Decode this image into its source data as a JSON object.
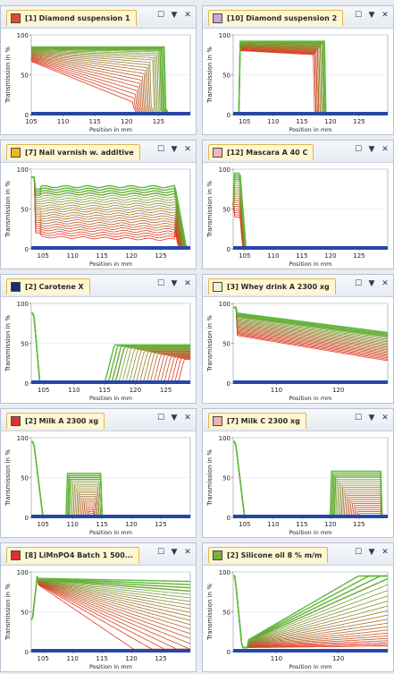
{
  "panels": [
    {
      "id": "p1",
      "title": "[1] Diamond suspension 1",
      "swatch": "#e04a3a",
      "xticks": [
        "105",
        "110",
        "115",
        "120",
        "125"
      ],
      "x0": 105,
      "x1": 130,
      "xticks_num": [
        105,
        110,
        115,
        120,
        125
      ],
      "y_ticks": [
        "0",
        "50",
        "100"
      ],
      "kind": "decay_plateau",
      "xlabel": "Position in mm",
      "ylabel": "Transmission in %"
    },
    {
      "id": "p2",
      "title": "[10] Diamond suspension 2",
      "swatch": "#c8a8d8",
      "xticks": [
        "105",
        "110",
        "115",
        "120",
        "125"
      ],
      "x0": 103,
      "x1": 130,
      "xticks_num": [
        105,
        110,
        115,
        120,
        125
      ],
      "y_ticks": [
        "0",
        "50",
        "100"
      ],
      "kind": "box",
      "xlabel": "Position in mm",
      "ylabel": "Transmission in %"
    },
    {
      "id": "p3",
      "title": "[7] Nail varnish w. additive",
      "swatch": "#f0b820",
      "xticks": [
        "105",
        "110",
        "115",
        "120",
        "125"
      ],
      "x0": 103,
      "x1": 130,
      "xticks_num": [
        105,
        110,
        115,
        120,
        125
      ],
      "y_ticks": [
        "0",
        "50",
        "100"
      ],
      "kind": "flat_band",
      "xlabel": "Position in mm",
      "ylabel": "Transmission in %"
    },
    {
      "id": "p4",
      "title": "[12] Mascara A 40 C",
      "swatch": "#f2b8b8",
      "xticks": [
        "105",
        "110",
        "115",
        "120",
        "125"
      ],
      "x0": 103,
      "x1": 130,
      "xticks_num": [
        105,
        110,
        115,
        120,
        125
      ],
      "y_ticks": [
        "0",
        "50",
        "100"
      ],
      "kind": "spike",
      "xlabel": "Position in mm",
      "ylabel": "Transmission in %"
    },
    {
      "id": "p5",
      "title": "[2] Carotene X",
      "swatch": "#1c2a7a",
      "xticks": [
        "105",
        "110",
        "115",
        "120",
        "125"
      ],
      "x0": 103,
      "x1": 129,
      "xticks_num": [
        105,
        110,
        115,
        120,
        125
      ],
      "y_ticks": [
        "0",
        "50",
        "100"
      ],
      "kind": "step_right",
      "xlabel": "Position in mm",
      "ylabel": "Transmission in %"
    },
    {
      "id": "p6",
      "title": "[3] Whey drink A 2300 xg",
      "swatch": "#f4f0c8",
      "xticks": [
        "110",
        "120"
      ],
      "x0": 103,
      "x1": 128,
      "xticks_num": [
        110,
        120
      ],
      "y_ticks": [
        "0",
        "50",
        "100"
      ],
      "kind": "decline_band",
      "xlabel": "Position in mm",
      "ylabel": "Transmission in %"
    },
    {
      "id": "p7",
      "title": "[2] Milk A 2300 xg",
      "swatch": "#e0302a",
      "xticks": [
        "105",
        "110",
        "115",
        "120",
        "125"
      ],
      "x0": 103,
      "x1": 130,
      "xticks_num": [
        105,
        110,
        115,
        120,
        125
      ],
      "y_ticks": [
        "0",
        "50",
        "100"
      ],
      "kind": "bump_left",
      "xlabel": "Position in mm",
      "ylabel": "Transmission in %"
    },
    {
      "id": "p8",
      "title": "[7] Milk C 2300 xg",
      "swatch": "#eeb0b0",
      "xticks": [
        "105",
        "110",
        "115",
        "120",
        "125"
      ],
      "x0": 103,
      "x1": 130,
      "xticks_num": [
        105,
        110,
        115,
        120,
        125
      ],
      "y_ticks": [
        "0",
        "50",
        "100"
      ],
      "kind": "bump_right",
      "xlabel": "Position in mm",
      "ylabel": "Transmission in %"
    },
    {
      "id": "p9",
      "title": "[8] LiMnPO4 Batch 1 500...",
      "swatch": "#e0302a",
      "xticks": [
        "105",
        "110",
        "115",
        "120",
        "125"
      ],
      "x0": 103,
      "x1": 130,
      "xticks_num": [
        105,
        110,
        115,
        120,
        125
      ],
      "y_ticks": [
        "0",
        "50",
        "100"
      ],
      "kind": "fan_decay",
      "xlabel": "Position in mm",
      "ylabel": "Transmission in %"
    },
    {
      "id": "p10",
      "title": "[2] Silicone oil 8 % m/m",
      "swatch": "#7ab040",
      "xticks": [
        "110",
        "120"
      ],
      "x0": 103,
      "x1": 128,
      "xticks_num": [
        110,
        120
      ],
      "y_ticks": [
        "0",
        "50",
        "100"
      ],
      "kind": "rise_fan",
      "xlabel": "Position in mm",
      "ylabel": "Transmission in %"
    }
  ],
  "controls": {
    "maximize": "☐",
    "menu": "▼",
    "close": "✕"
  },
  "colors": {
    "early": "#e8321e",
    "late": "#5aba3a",
    "baseline": "#2747a8",
    "grid": "#e6e6e6"
  }
}
